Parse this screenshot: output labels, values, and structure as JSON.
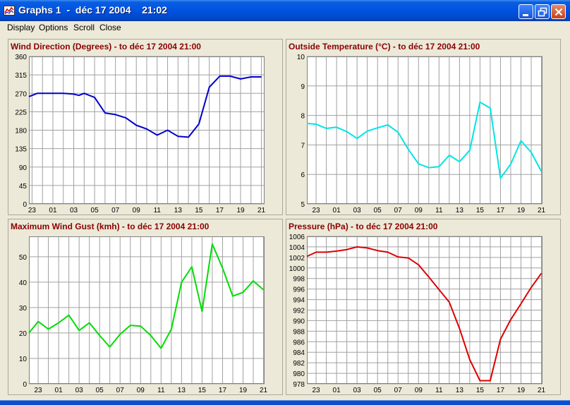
{
  "window": {
    "title": "Graphs 1  -  déc 17 2004    21:02"
  },
  "menu": [
    "Display",
    "Options",
    "Scroll",
    "Close"
  ],
  "chart_data": [
    {
      "type": "line",
      "title": "Wind Direction (Degrees) - to déc 17 2004 21:00",
      "color": "#0000cc",
      "ylim": [
        0,
        360
      ],
      "yticks": [
        "0",
        "45",
        "90",
        "135",
        "180",
        "225",
        "270",
        "315",
        "360"
      ],
      "xlim": [
        -1.3,
        21.3
      ],
      "xticks": [
        "23",
        "01",
        "03",
        "05",
        "07",
        "09",
        "11",
        "13",
        "15",
        "17",
        "19",
        "21"
      ],
      "xtick_pos": [
        -1,
        1,
        3,
        5,
        7,
        9,
        11,
        13,
        15,
        17,
        19,
        21
      ],
      "x": [
        -1.3,
        -0.5,
        0,
        1,
        2,
        3,
        3.5,
        4,
        5,
        6,
        7,
        8,
        9,
        10,
        11,
        12,
        13,
        14,
        15,
        16,
        17,
        18,
        19,
        20,
        21
      ],
      "y": [
        262,
        270,
        270,
        270,
        270,
        268,
        265,
        270,
        260,
        222,
        218,
        210,
        192,
        183,
        168,
        180,
        165,
        163,
        195,
        285,
        312,
        312,
        305,
        310,
        310
      ]
    },
    {
      "type": "line",
      "title": "Outside Temperature (°C) - to déc 17 2004 21:00",
      "color": "#00e5e5",
      "ylim": [
        5,
        10
      ],
      "yticks": [
        "5",
        "6",
        "7",
        "8",
        "9",
        "10"
      ],
      "xlim": [
        -1.9,
        21.1
      ],
      "xticks": [
        "23",
        "01",
        "03",
        "05",
        "07",
        "09",
        "11",
        "13",
        "15",
        "17",
        "19",
        "21"
      ],
      "xtick_pos": [
        -1,
        1,
        3,
        5,
        7,
        9,
        11,
        13,
        15,
        17,
        19,
        21
      ],
      "x": [
        -1.9,
        -1,
        0,
        1,
        2,
        3,
        4,
        5,
        6,
        7,
        8,
        9,
        10,
        11,
        12,
        13,
        14,
        15,
        16,
        17,
        18,
        19,
        20,
        21
      ],
      "y": [
        7.73,
        7.7,
        7.56,
        7.6,
        7.45,
        7.22,
        7.47,
        7.58,
        7.68,
        7.43,
        6.85,
        6.36,
        6.23,
        6.26,
        6.65,
        6.43,
        6.82,
        8.45,
        8.25,
        5.87,
        6.35,
        7.14,
        6.75,
        6.1
      ]
    },
    {
      "type": "line",
      "title": "Maximum Wind Gust (kmh) - to déc 17 2004 21:00",
      "color": "#00dd00",
      "ylim": [
        0,
        58
      ],
      "yticks": [
        "0",
        "10",
        "20",
        "30",
        "40",
        "50"
      ],
      "ytick_vals": [
        0,
        10,
        20,
        30,
        40,
        50
      ],
      "xlim": [
        -1.9,
        21.1
      ],
      "xticks": [
        "23",
        "01",
        "03",
        "05",
        "07",
        "09",
        "11",
        "13",
        "15",
        "17",
        "19",
        "21"
      ],
      "xtick_pos": [
        -1,
        1,
        3,
        5,
        7,
        9,
        11,
        13,
        15,
        17,
        19,
        21
      ],
      "x": [
        -1.9,
        -1,
        0,
        1,
        2,
        3,
        4,
        5,
        6,
        7,
        8,
        9,
        10,
        11,
        12,
        13,
        14,
        15,
        16,
        17,
        18,
        19,
        20,
        21
      ],
      "y": [
        20,
        24.5,
        21.5,
        24,
        27,
        21,
        24,
        19,
        14.5,
        19.5,
        23,
        22.7,
        19,
        14,
        21.5,
        40,
        46,
        28.5,
        55,
        45.5,
        34.5,
        36,
        40.5,
        37
      ]
    },
    {
      "type": "line",
      "title": "Pressure (hPa) - to déc 17 2004 21:00",
      "color": "#dd0000",
      "ylim": [
        978,
        1006
      ],
      "yticks": [
        "978",
        "980",
        "982",
        "984",
        "986",
        "988",
        "990",
        "992",
        "994",
        "996",
        "998",
        "1000",
        "1002",
        "1004",
        "1006"
      ],
      "xlim": [
        -1.9,
        21.1
      ],
      "xticks": [
        "23",
        "01",
        "03",
        "05",
        "07",
        "09",
        "11",
        "13",
        "15",
        "17",
        "19",
        "21"
      ],
      "xtick_pos": [
        -1,
        1,
        3,
        5,
        7,
        9,
        11,
        13,
        15,
        17,
        19,
        21
      ],
      "x": [
        -1.9,
        -1,
        0,
        1,
        2,
        3,
        4,
        5,
        6,
        7,
        8,
        9,
        10,
        11,
        12,
        13,
        14,
        15,
        16,
        17,
        18,
        19,
        20,
        21
      ],
      "y": [
        1002.2,
        1003,
        1003,
        1003.2,
        1003.5,
        1004,
        1003.8,
        1003.3,
        1003,
        1002.1,
        1001.9,
        1000.6,
        998.3,
        995.9,
        993.5,
        988.5,
        982.6,
        978.6,
        978.6,
        986.5,
        990.2,
        993.2,
        996.3,
        999
      ]
    }
  ]
}
